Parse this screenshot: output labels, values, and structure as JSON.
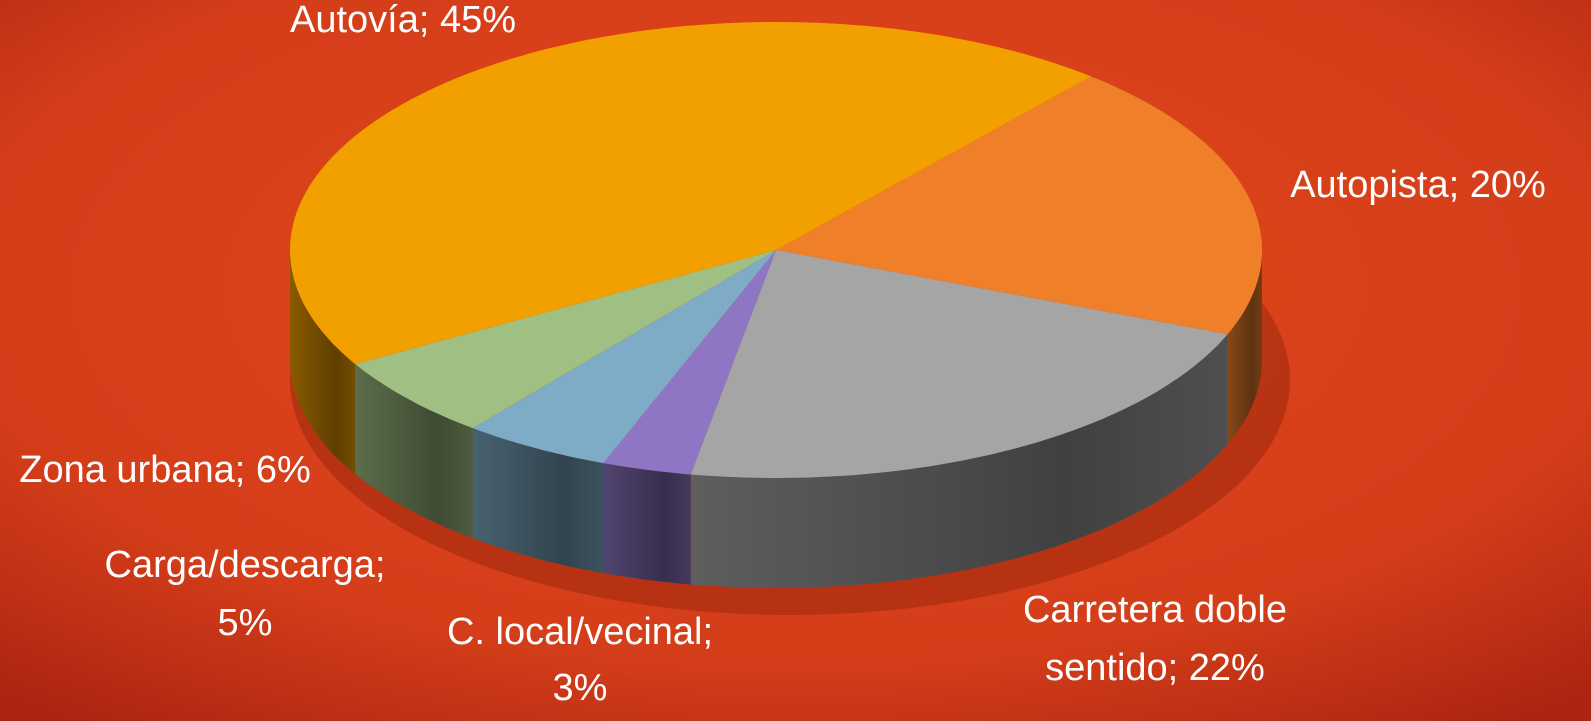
{
  "chart_data": {
    "type": "pie3d",
    "values": [
      20,
      22,
      3,
      5,
      6,
      45
    ],
    "value_labels": [
      [
        "Autopista; 20%"
      ],
      [
        "Carretera doble",
        "sentido; 22%"
      ],
      [
        "C. local/vecinal;",
        "3%"
      ],
      [
        "Carga/descarga;",
        "5%"
      ],
      [
        "Zona urbana; 6%"
      ],
      [
        "Autovía; 45%"
      ]
    ],
    "colors": [
      "#f07f2a",
      "#a5a5a5",
      "#8e76c4",
      "#7eabc6",
      "#a0c083",
      "#f2a000"
    ]
  }
}
